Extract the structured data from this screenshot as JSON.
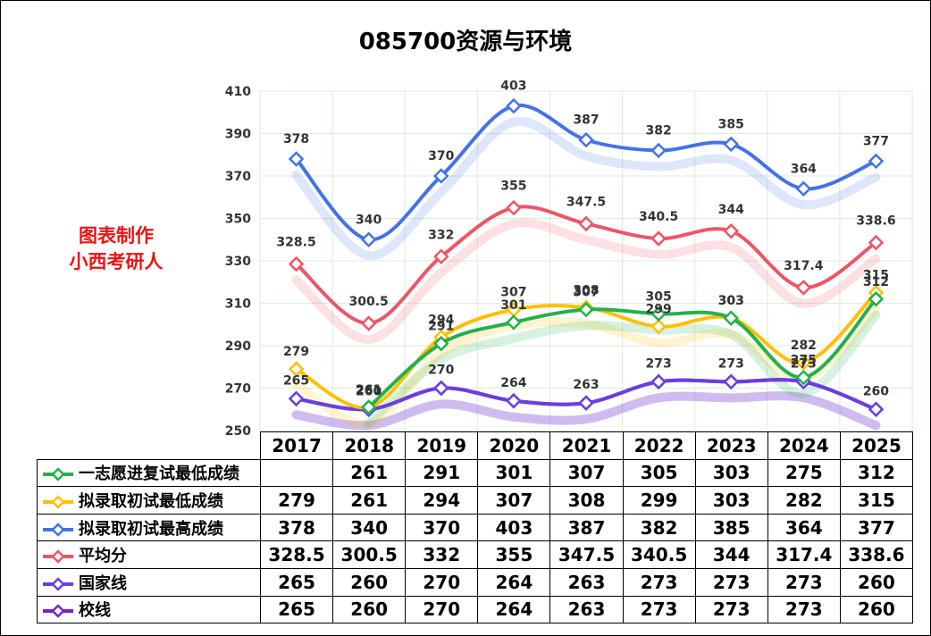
{
  "chart_data": {
    "type": "line",
    "title": "085700资源与环境",
    "categories": [
      "2017",
      "2018",
      "2019",
      "2020",
      "2021",
      "2022",
      "2023",
      "2024",
      "2025"
    ],
    "ylim": [
      250,
      410
    ],
    "yticks": [
      250,
      270,
      290,
      310,
      330,
      350,
      370,
      390,
      410
    ],
    "grid": true,
    "legend": "table-left",
    "series": [
      {
        "name": "一志愿进复试最低成绩",
        "color": "#22b14c",
        "values": [
          null,
          261,
          291,
          301,
          307,
          305,
          303,
          275,
          312
        ]
      },
      {
        "name": "拟录取初试最低成绩",
        "color": "#ffc000",
        "values": [
          279,
          261,
          294,
          307,
          308,
          299,
          303,
          282,
          315
        ]
      },
      {
        "name": "拟录取初试最高成绩",
        "color": "#4472e8",
        "values": [
          378,
          340,
          370,
          403,
          387,
          382,
          385,
          364,
          377
        ]
      },
      {
        "name": "平均分",
        "color": "#ee5566",
        "values": [
          328.5,
          300.5,
          332,
          355,
          347.5,
          340.5,
          344,
          317.4,
          338.6
        ]
      },
      {
        "name": "国家线",
        "color": "#6a3fe0",
        "values": [
          265,
          260,
          270,
          264,
          263,
          273,
          273,
          273,
          260
        ]
      },
      {
        "name": "校线",
        "color": "#7a22cc",
        "values": [
          265,
          260,
          270,
          264,
          263,
          273,
          273,
          273,
          260
        ]
      }
    ],
    "point_labels": [
      {
        "series": 0,
        "values": [
          null,
          "261",
          "291",
          "301",
          "307",
          "305",
          "303",
          "275",
          "312"
        ]
      },
      {
        "series": 1,
        "values": [
          "279",
          "261",
          "294",
          "307",
          "308",
          "299",
          "303",
          "282",
          "315"
        ]
      },
      {
        "series": 2,
        "values": [
          "378",
          "340",
          "370",
          "403",
          "387",
          "382",
          "385",
          "364",
          "377"
        ]
      },
      {
        "series": 3,
        "values": [
          "328.5",
          "300.5",
          "332",
          "355",
          "347.5",
          "340.5",
          "344",
          "317.4",
          "338.6"
        ]
      },
      {
        "series": 4,
        "values": [
          "265",
          "260",
          "270",
          "264",
          "263",
          "273",
          "273",
          "273",
          "260"
        ]
      }
    ],
    "table_rows": [
      [
        "",
        "261",
        "291",
        "301",
        "307",
        "305",
        "303",
        "275",
        "312"
      ],
      [
        "279",
        "261",
        "294",
        "307",
        "308",
        "299",
        "303",
        "282",
        "315"
      ],
      [
        "378",
        "340",
        "370",
        "403",
        "387",
        "382",
        "385",
        "364",
        "377"
      ],
      [
        "328.5",
        "300.5",
        "332",
        "355",
        "347.5",
        "340.5",
        "344",
        "317.4",
        "338.6"
      ],
      [
        "265",
        "260",
        "270",
        "264",
        "263",
        "273",
        "273",
        "273",
        "260"
      ],
      [
        "265",
        "260",
        "270",
        "264",
        "263",
        "273",
        "273",
        "273",
        "260"
      ]
    ]
  },
  "watermark": {
    "line1": "图表制作",
    "line2": "小西考研人"
  }
}
